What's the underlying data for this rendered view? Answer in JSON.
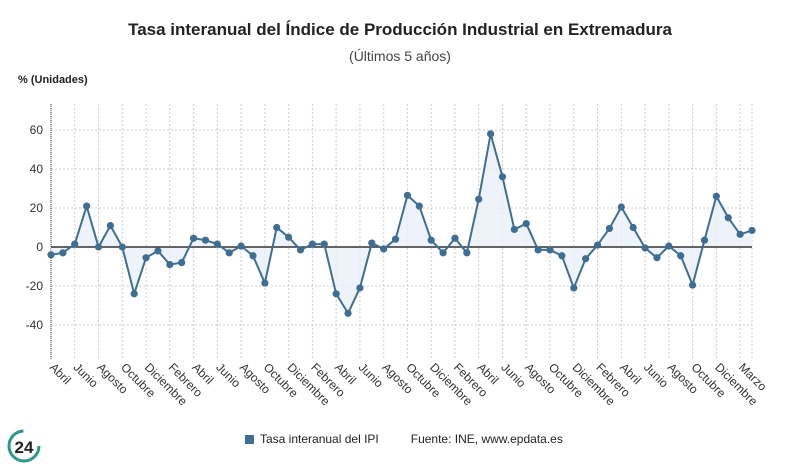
{
  "chart_data": {
    "type": "line",
    "title": "Tasa interanual del Índice de Producción Industrial en Extremadura",
    "subtitle": "(Últimos 5 años)",
    "ylabel": "% (Unidades)",
    "xlabel": "",
    "ylim": [
      -58,
      70
    ],
    "yticks": [
      -40,
      -20,
      0,
      20,
      40,
      60
    ],
    "grid": true,
    "legend_position": "bottom",
    "colors": {
      "line": "#3e6e93",
      "fill": "#e8f0f7",
      "zero": "#333333"
    },
    "x_tick_labels": [
      "Abril",
      "Junio",
      "Agosto",
      "Octubre",
      "Diciembre",
      "Febrero",
      "Abril",
      "Junio",
      "Agosto",
      "Octubre",
      "Diciembre",
      "Febrero",
      "Abril",
      "Junio",
      "Agosto",
      "Octubre",
      "Diciembre",
      "Febrero",
      "Abril",
      "Junio",
      "Agosto",
      "Octubre",
      "Diciembre",
      "Febrero",
      "Abril",
      "Junio",
      "Agosto",
      "Octubre",
      "Diciembre",
      "Marzo"
    ],
    "series": [
      {
        "name": "Tasa interanual del IPI",
        "values": [
          -4,
          -3,
          1.5,
          21,
          0,
          11,
          0,
          -24,
          -5.5,
          -2,
          -9,
          -8,
          4.5,
          3.5,
          1.5,
          -3,
          0.5,
          -4.5,
          -18.5,
          10,
          5,
          -1.5,
          1.5,
          1.5,
          -24,
          -34,
          -21,
          2,
          -1,
          4,
          26.5,
          21,
          3.5,
          -3,
          4.5,
          -3,
          24.5,
          58,
          36,
          9,
          12,
          -1.5,
          -1.5,
          -4.5,
          -21,
          -6,
          1,
          9.5,
          20.5,
          10,
          -0.5,
          -5.5,
          0.5,
          -4.5,
          -19.5,
          3.5,
          26,
          15,
          6.5,
          8.5
        ]
      }
    ]
  },
  "legend": {
    "label": "Tasa interanual del IPI",
    "source": "Fuente: INE, www.epdata.es"
  },
  "logo": {
    "text": "24"
  }
}
